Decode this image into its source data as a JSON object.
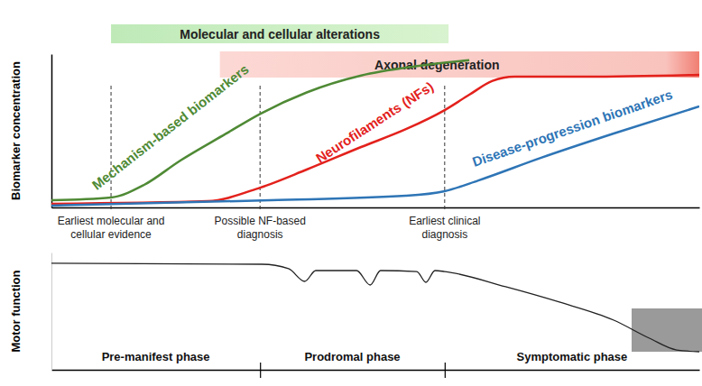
{
  "chart_data": [
    {
      "type": "line",
      "ylabel": "Biomarker concentration",
      "xlim": [
        0,
        100
      ],
      "ylim": [
        0,
        100
      ],
      "xticks": [],
      "yticks": [],
      "tick_labels": false,
      "series": [
        {
          "name": "Mechanism-based biomarkers",
          "color": "#4f8a35",
          "x": [
            0,
            9.2,
            14.3,
            19.9,
            26.9,
            32.2,
            39.4,
            47.8,
            56.2,
            64.5
          ],
          "values": [
            4.7,
            6.5,
            14.7,
            30.6,
            48,
            61,
            75,
            86,
            92,
            96
          ]
        },
        {
          "name": "Neurofilaments (NFs)",
          "color": "#e3211c",
          "x": [
            0,
            24.1,
            32.2,
            39.4,
            47.8,
            54.8,
            60.7,
            64.5,
            68,
            71.5,
            82.6,
            100
          ],
          "values": [
            2.4,
            4.1,
            12.9,
            24.7,
            39.4,
            51.2,
            63.5,
            73.5,
            82.4,
            85.3,
            85.3,
            86.5
          ]
        },
        {
          "name": "Disease-progression biomarkers",
          "color": "#2e75b6",
          "x": [
            0,
            33.8,
            54.7,
            60.7,
            65.9,
            75.6,
            86.8,
            100
          ],
          "values": [
            1.2,
            4.7,
            7.6,
            10.6,
            17.6,
            32.4,
            48.2,
            65.9
          ]
        }
      ],
      "bands": [
        {
          "label": "Molecular and cellular alterations",
          "x": [
            9.2,
            61.3
          ]
        },
        {
          "label": "Axonal degeneration",
          "x": [
            26,
            100
          ]
        }
      ],
      "markers": [
        {
          "label": [
            "Earliest molecular and",
            "cellular evidence"
          ],
          "x": 9.2
        },
        {
          "label": [
            "Possible NF-based",
            "diagnosis"
          ],
          "x": 32.2
        },
        {
          "label": [
            "Earliest clinical",
            "diagnosis"
          ],
          "x": 60.7
        }
      ]
    },
    {
      "type": "line",
      "ylabel": "Motor function",
      "xlim": [
        0,
        100
      ],
      "ylim": [
        0,
        100
      ],
      "xticks": [
        32.2,
        60.7
      ],
      "yticks": [],
      "tick_labels": false,
      "series": [
        {
          "color": "#222222",
          "x": [
            0,
            32.5,
            36.6,
            39.1,
            40.8,
            47.1,
            49.2,
            50.8,
            56.4,
            57.8,
            59.2,
            60.7,
            70.1,
            78.4,
            86.8,
            92.3,
            96.5,
            100
          ],
          "values": [
            90.8,
            90,
            86.2,
            75.4,
            84.6,
            84.6,
            72.3,
            84.6,
            83.8,
            74.6,
            84.6,
            83.8,
            70.8,
            57.7,
            42.3,
            26.9,
            16.9,
            15.4
          ]
        }
      ],
      "regions": [
        {
          "label": "Pre-manifest phase",
          "x": [
            0,
            32.2
          ]
        },
        {
          "label": "Prodromal phase",
          "x": [
            32.2,
            60.7
          ]
        },
        {
          "label": "Symptomatic phase",
          "x": [
            60.7,
            100
          ]
        }
      ]
    }
  ]
}
